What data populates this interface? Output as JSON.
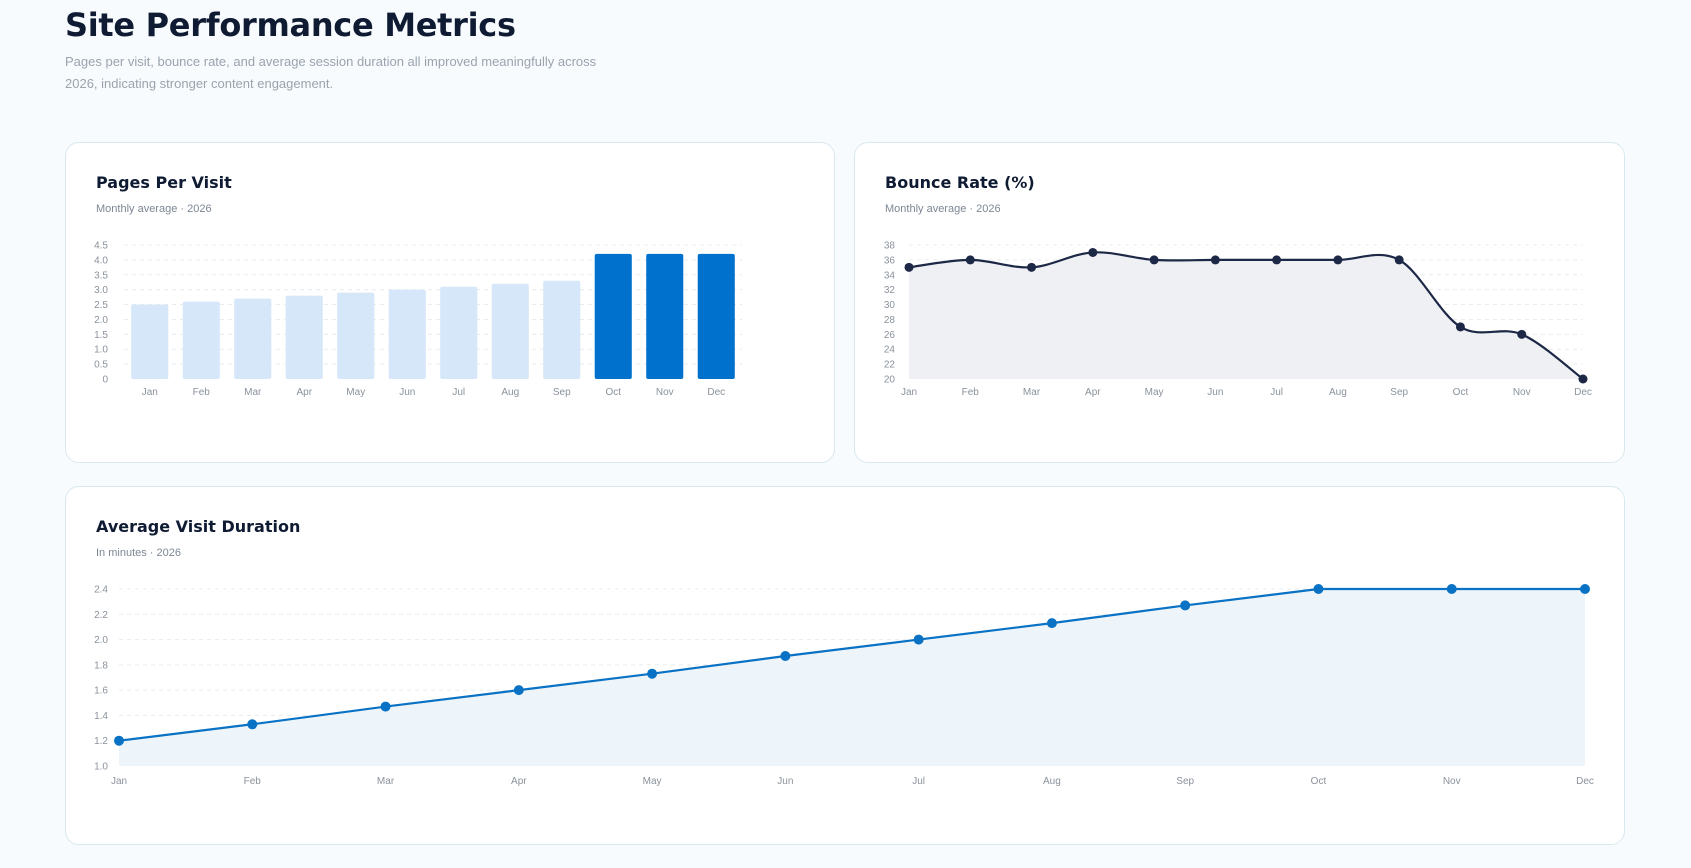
{
  "page": {
    "title": "Site Performance Metrics",
    "subtitle": "Pages per visit, bounce rate, and average session duration all improved meaningfully across 2026, indicating stronger content engagement."
  },
  "colors": {
    "bar_light": "#d6e7f9",
    "bar_highlight": "#0072ce",
    "bounce_line": "#1c2846",
    "bounce_fill": "#eef0f3",
    "duration_line": "#0a72c4",
    "duration_fill": "#eef5fa",
    "grid": "#e8ecef"
  },
  "chart_data": [
    {
      "id": "pages",
      "type": "bar",
      "title": "Pages Per Visit",
      "subtitle": "Monthly average · 2026",
      "categories": [
        "Jan",
        "Feb",
        "Mar",
        "Apr",
        "May",
        "Jun",
        "Jul",
        "Aug",
        "Sep",
        "Oct",
        "Nov",
        "Dec"
      ],
      "values": [
        2.5,
        2.6,
        2.7,
        2.8,
        2.9,
        3.0,
        3.1,
        3.2,
        3.3,
        4.2,
        4.2,
        4.2
      ],
      "highlight": [
        false,
        false,
        false,
        false,
        false,
        false,
        false,
        false,
        false,
        true,
        true,
        true
      ],
      "ylim": [
        0,
        4.5
      ],
      "yticks": [
        "0",
        "0.5",
        "1.0",
        "1.5",
        "2.0",
        "2.5",
        "3.0",
        "3.5",
        "4.0",
        "4.5"
      ],
      "grid": true,
      "legend": "none"
    },
    {
      "id": "bounce",
      "type": "area",
      "title": "Bounce Rate (%)",
      "subtitle": "Monthly average · 2026",
      "categories": [
        "Jan",
        "Feb",
        "Mar",
        "Apr",
        "May",
        "Jun",
        "Jul",
        "Aug",
        "Sep",
        "Oct",
        "Nov",
        "Dec"
      ],
      "values": [
        35,
        36,
        35,
        37,
        36,
        36,
        36,
        36,
        36,
        27,
        26,
        20
      ],
      "ylim": [
        20,
        38
      ],
      "yticks": [
        "20",
        "22",
        "24",
        "26",
        "28",
        "30",
        "32",
        "34",
        "36",
        "38"
      ],
      "curve": "smooth",
      "grid": true,
      "legend": "none"
    },
    {
      "id": "duration",
      "type": "area",
      "title": "Average Visit Duration",
      "subtitle": "In minutes · 2026",
      "categories": [
        "Jan",
        "Feb",
        "Mar",
        "Apr",
        "May",
        "Jun",
        "Jul",
        "Aug",
        "Sep",
        "Oct",
        "Nov",
        "Dec"
      ],
      "values": [
        1.2,
        1.33,
        1.47,
        1.6,
        1.73,
        1.87,
        2.0,
        2.13,
        2.27,
        2.4,
        2.4,
        2.4
      ],
      "ylim": [
        1.0,
        2.4
      ],
      "yticks": [
        "1.0",
        "1.2",
        "1.4",
        "1.6",
        "1.8",
        "2.0",
        "2.2",
        "2.4"
      ],
      "curve": "linear",
      "grid": true,
      "legend": "none"
    }
  ]
}
